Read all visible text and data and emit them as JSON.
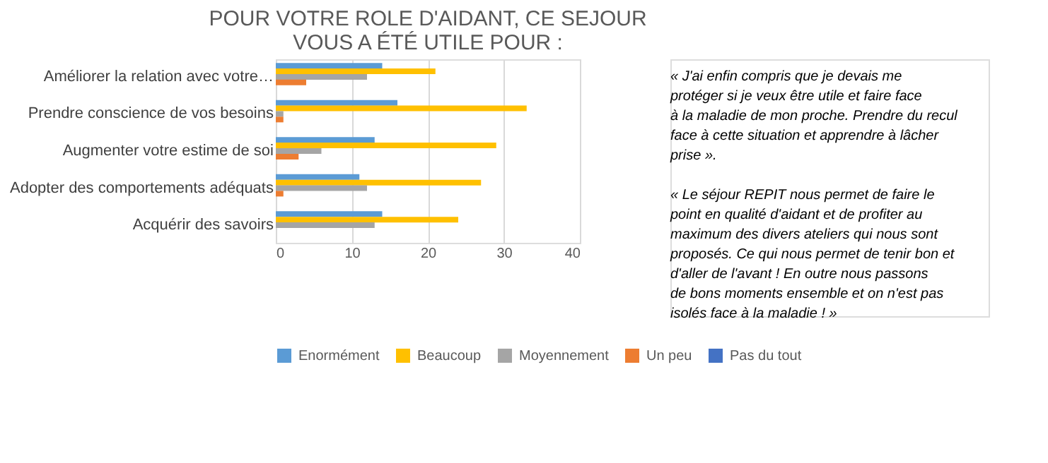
{
  "chart_data": {
    "type": "bar",
    "orientation": "horizontal",
    "title": "POUR VOTRE ROLE D'AIDANT, CE SEJOUR VOUS A ÉTÉ UTILE POUR :",
    "categories": [
      "Améliorer la relation avec votre…",
      "Prendre conscience de vos besoins",
      "Augmenter votre estime de soi",
      "Adopter des comportements adéquats",
      "Acquérir des savoirs"
    ],
    "series": [
      {
        "name": "Enormément",
        "color": "#5b9bd5",
        "values": [
          14,
          16,
          13,
          11,
          14
        ]
      },
      {
        "name": "Beaucoup",
        "color": "#ffc000",
        "values": [
          21,
          33,
          29,
          27,
          24
        ]
      },
      {
        "name": "Moyennement",
        "color": "#a5a5a5",
        "values": [
          12,
          1,
          6,
          12,
          13
        ]
      },
      {
        "name": "Un peu",
        "color": "#ed7d31",
        "values": [
          4,
          1,
          3,
          1,
          0
        ]
      },
      {
        "name": "Pas du tout",
        "color": "#4472c4",
        "values": [
          0,
          0,
          0,
          0,
          0
        ]
      }
    ],
    "xlim": [
      0,
      40
    ],
    "xticks": [
      0,
      10,
      20,
      30,
      40
    ],
    "grid": "x",
    "legend": "bottom",
    "annotations": [
      "« J'ai enfin compris que je devais me protéger si je veux être utile et faire face à la maladie de mon proche. Prendre du recul face à cette situation et apprendre à lâcher prise ».",
      "« Le séjour REPIT nous permet de faire le point en qualité d'aidant et de profiter au maximum des divers ateliers qui nous sont proposés. Ce qui nous permet de tenir bon et d'aller de l'avant ! En outre nous passons de bons moments ensemble et on n'est pas isolés face à la maladie ! »"
    ]
  }
}
